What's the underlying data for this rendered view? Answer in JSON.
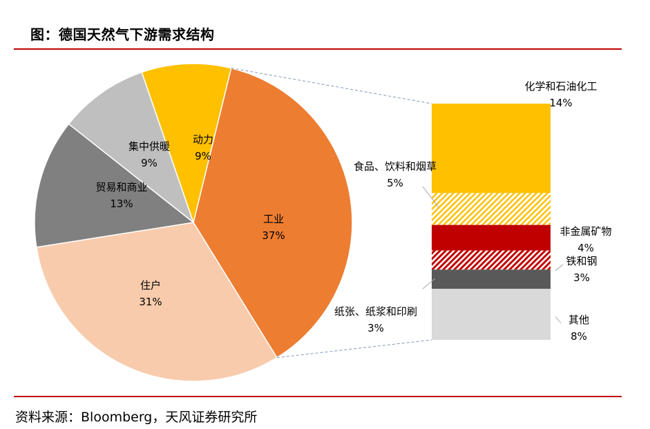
{
  "header": {
    "title": "图：德国天然气下游需求结构"
  },
  "footer": {
    "source": "资料来源：Bloomberg，天风证券研究所"
  },
  "colors": {
    "industry": "#ed7d31",
    "residential": "#f8cbad",
    "trade": "#808080",
    "district_heating": "#bfbfbf",
    "power": "#ffc000",
    "chemicals": "#ffc000",
    "food_pattern": "#ffc000",
    "nonmetal": "#c00000",
    "steel_pattern": "#c00000",
    "paper": "#595959",
    "other": "#d9d9d9",
    "title_rule": "#c00000",
    "connector": "#8497b0"
  },
  "chart_data": [
    {
      "type": "pie",
      "categories": [
        "工业",
        "住户",
        "贸易和商业",
        "集中供暖",
        "动力"
      ],
      "values": [
        37,
        31,
        13,
        9,
        9
      ],
      "labels": [
        "工业\n37%",
        "住户\n31%",
        "贸易和商业\n13%",
        "集中供暖\n9%",
        "动力\n9%"
      ]
    },
    {
      "type": "bar",
      "stacked": true,
      "categories": [
        "化学和石油化工",
        "食品、饮料和烟草",
        "非金属矿物",
        "铁和钢",
        "纸张、纸浆和印刷",
        "其他"
      ],
      "values": [
        14,
        5,
        4,
        3,
        3,
        8
      ],
      "labels": [
        "化学和石油化工\n14%",
        "食品、饮料和烟草\n5%",
        "非金属矿物\n4%",
        "铁和钢\n3%",
        "纸张、纸浆和印刷\n3%",
        "其他\n8%"
      ]
    }
  ]
}
